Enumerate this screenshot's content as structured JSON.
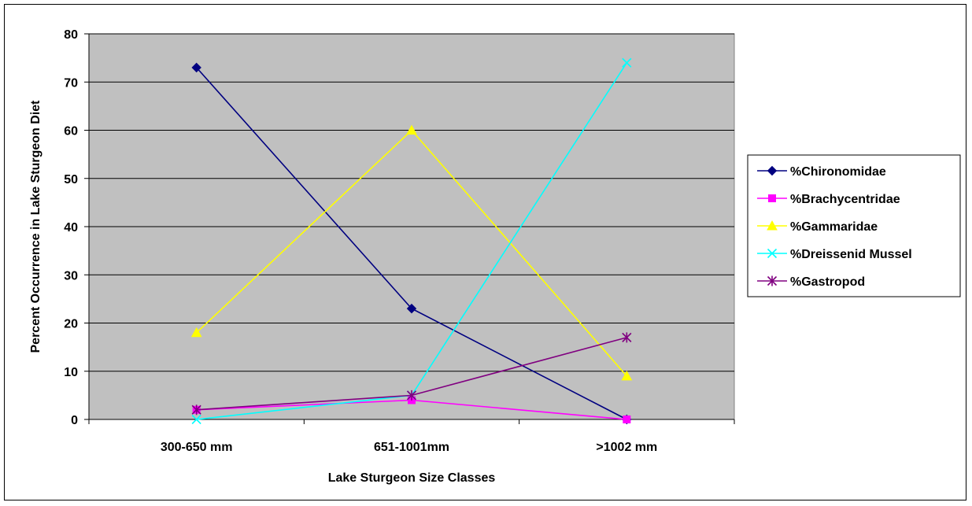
{
  "colors": {
    "plot_background": "#c0c0c0",
    "gridline": "#000000",
    "chart_background": "#ffffff"
  },
  "chart_data": {
    "type": "line",
    "title": "",
    "xlabel": "Lake Sturgeon Size Classes",
    "ylabel": "Percent Occurrence in Lake Sturgeon Diet",
    "categories": [
      "300-650 mm",
      "651-1001mm",
      ">1002 mm"
    ],
    "ylim": [
      0,
      80
    ],
    "yticks": [
      0,
      10,
      20,
      30,
      40,
      50,
      60,
      70,
      80
    ],
    "grid": true,
    "legend_position": "right",
    "series": [
      {
        "name": "%Chironomidae",
        "values": [
          73,
          23,
          0
        ],
        "color": "#000080",
        "marker": "diamond"
      },
      {
        "name": "%Brachycentridae",
        "values": [
          2,
          4,
          0
        ],
        "color": "#ff00ff",
        "marker": "square"
      },
      {
        "name": "%Gammaridae",
        "values": [
          18,
          60,
          9
        ],
        "color": "#ffff00",
        "marker": "triangle"
      },
      {
        "name": "%Dreissenid Mussel",
        "values": [
          0,
          5,
          74
        ],
        "color": "#00ffff",
        "marker": "x"
      },
      {
        "name": "%Gastropod",
        "values": [
          2,
          5,
          17
        ],
        "color": "#800080",
        "marker": "star"
      }
    ]
  }
}
